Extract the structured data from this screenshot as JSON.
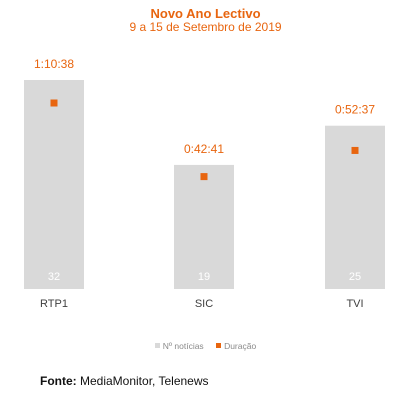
{
  "chart_data": {
    "type": "bar",
    "title": "Novo Ano Lectivo",
    "subtitle": "9 a 15 de Setembro de 2019",
    "categories": [
      "RTP1",
      "SIC",
      "TVI"
    ],
    "series": [
      {
        "name": "Nº notícias",
        "kind": "bar",
        "values": [
          32,
          19,
          25
        ],
        "color": "#d9d9d9"
      },
      {
        "name": "Duração",
        "kind": "marker",
        "values": [
          "1:10:38",
          "0:42:41",
          "0:52:37"
        ],
        "seconds": [
          4238,
          2561,
          3157
        ],
        "color": "#e8650f"
      }
    ],
    "grid": false,
    "legend": "bottom"
  },
  "source": {
    "label": "Fonte:",
    "text": " MediaMonitor, Telenews"
  },
  "colors": {
    "accent": "#e8650f",
    "bar": "#d9d9d9",
    "bar_label": "#ffffff",
    "category_text": "#404040"
  }
}
